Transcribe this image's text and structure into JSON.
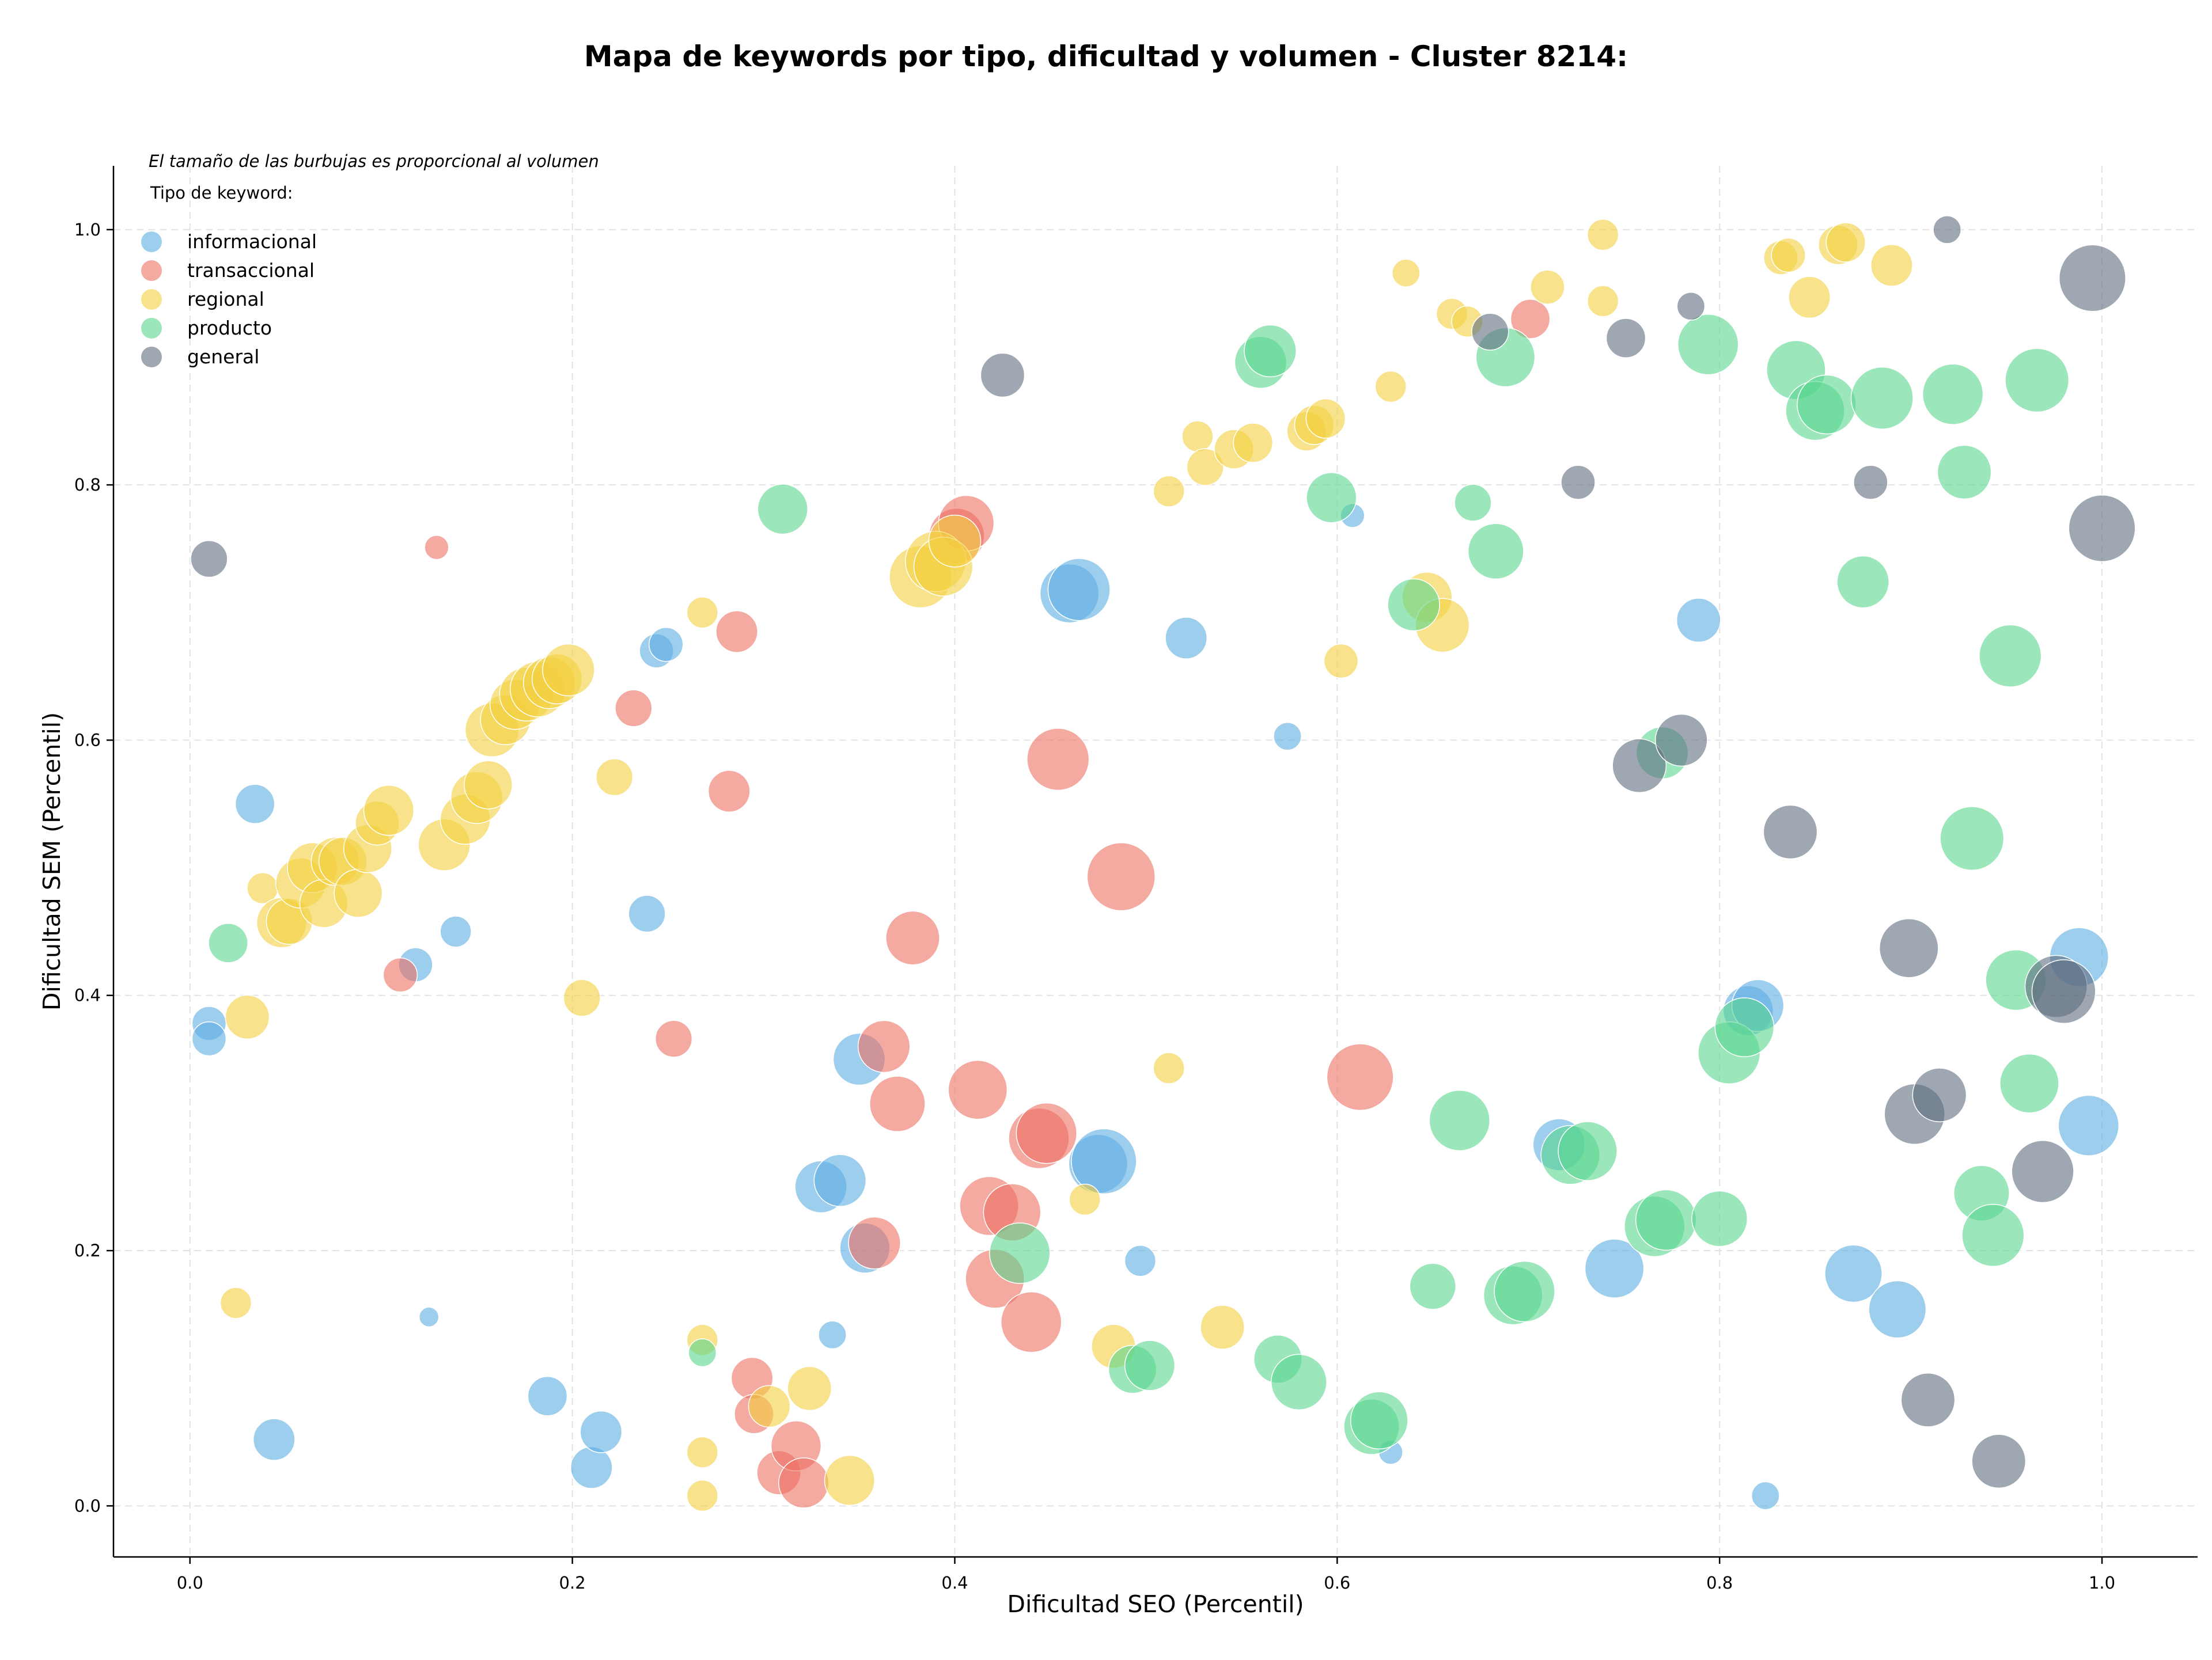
{
  "chart_data": {
    "type": "scatter",
    "title": "Mapa de keywords por tipo, dificultad y volumen - Cluster 8214:",
    "xlabel": "Dificultad SEO (Percentil)",
    "ylabel": "Dificultad SEM (Percentil)",
    "xlim": [
      -0.04,
      1.05
    ],
    "ylim": [
      -0.04,
      1.05
    ],
    "xticks": [
      "0.0",
      "0.2",
      "0.4",
      "0.6",
      "0.8",
      "1.0"
    ],
    "yticks": [
      "0.0",
      "0.2",
      "0.4",
      "0.6",
      "0.8",
      "1.0"
    ],
    "grid": true,
    "legend_position": "top-left",
    "legend_note": "El tamaño de las burbujas es proporcional al volumen",
    "legend_title": "Tipo de keyword:",
    "size_encoding": "volume",
    "series": [
      {
        "name": "informacional",
        "color": "#5dade2",
        "points": [
          [
            0.01,
            0.378,
            0.6
          ],
          [
            0.01,
            0.366,
            0.6
          ],
          [
            0.034,
            0.55,
            0.8
          ],
          [
            0.044,
            0.052,
            0.9
          ],
          [
            0.118,
            0.424,
            0.6
          ],
          [
            0.125,
            0.148,
            0.2
          ],
          [
            0.139,
            0.45,
            0.5
          ],
          [
            0.187,
            0.086,
            0.8
          ],
          [
            0.21,
            0.03,
            0.9
          ],
          [
            0.215,
            0.058,
            0.9
          ],
          [
            0.239,
            0.464,
            0.7
          ],
          [
            0.244,
            0.67,
            0.6
          ],
          [
            0.249,
            0.675,
            0.6
          ],
          [
            0.33,
            0.25,
            1.4
          ],
          [
            0.34,
            0.255,
            1.4
          ],
          [
            0.336,
            0.134,
            0.4
          ],
          [
            0.35,
            0.35,
            1.4
          ],
          [
            0.353,
            0.202,
            1.3
          ],
          [
            0.46,
            0.715,
            1.8
          ],
          [
            0.465,
            0.718,
            2.0
          ],
          [
            0.475,
            0.268,
            1.8
          ],
          [
            0.478,
            0.27,
            2.2
          ],
          [
            0.497,
            0.192,
            0.5
          ],
          [
            0.521,
            0.68,
            0.9
          ],
          [
            0.574,
            0.603,
            0.4
          ],
          [
            0.608,
            0.776,
            0.3
          ],
          [
            0.628,
            0.042,
            0.3
          ],
          [
            0.716,
            0.283,
            1.4
          ],
          [
            0.745,
            0.186,
            1.8
          ],
          [
            0.789,
            0.694,
            1.0
          ],
          [
            0.815,
            0.388,
            1.3
          ],
          [
            0.82,
            0.392,
            1.4
          ],
          [
            0.824,
            0.008,
            0.4
          ],
          [
            0.87,
            0.182,
            1.7
          ],
          [
            0.893,
            0.154,
            1.7
          ],
          [
            0.988,
            0.43,
            1.8
          ],
          [
            0.993,
            0.298,
            1.9
          ]
        ]
      },
      {
        "name": "transaccional",
        "color": "#ec7063",
        "points": [
          [
            0.11,
            0.416,
            0.6
          ],
          [
            0.129,
            0.751,
            0.3
          ],
          [
            0.232,
            0.625,
            0.7
          ],
          [
            0.253,
            0.366,
            0.7
          ],
          [
            0.282,
            0.56,
            0.9
          ],
          [
            0.286,
            0.685,
            0.9
          ],
          [
            0.294,
            0.1,
            0.9
          ],
          [
            0.295,
            0.072,
            0.8
          ],
          [
            0.308,
            0.026,
            1.0
          ],
          [
            0.317,
            0.047,
            1.3
          ],
          [
            0.321,
            0.018,
            1.3
          ],
          [
            0.358,
            0.206,
            1.4
          ],
          [
            0.363,
            0.36,
            1.4
          ],
          [
            0.37,
            0.315,
            1.6
          ],
          [
            0.378,
            0.445,
            1.5
          ],
          [
            0.401,
            0.76,
            1.6
          ],
          [
            0.406,
            0.77,
            1.6
          ],
          [
            0.412,
            0.326,
            1.8
          ],
          [
            0.418,
            0.235,
            1.8
          ],
          [
            0.421,
            0.178,
            1.8
          ],
          [
            0.43,
            0.23,
            1.7
          ],
          [
            0.44,
            0.144,
            1.9
          ],
          [
            0.444,
            0.288,
            1.9
          ],
          [
            0.448,
            0.292,
            1.9
          ],
          [
            0.454,
            0.585,
            2.0
          ],
          [
            0.487,
            0.493,
            2.4
          ],
          [
            0.612,
            0.336,
            2.3
          ],
          [
            0.701,
            0.93,
            0.8
          ]
        ]
      },
      {
        "name": "regional",
        "color": "#f4d03f",
        "points": [
          [
            0.024,
            0.159,
            0.5
          ],
          [
            0.03,
            0.383,
            1.0
          ],
          [
            0.038,
            0.484,
            0.5
          ],
          [
            0.048,
            0.457,
            1.3
          ],
          [
            0.052,
            0.458,
            1.1
          ],
          [
            0.058,
            0.488,
            1.3
          ],
          [
            0.064,
            0.5,
            1.3
          ],
          [
            0.07,
            0.472,
            1.2
          ],
          [
            0.076,
            0.505,
            1.2
          ],
          [
            0.08,
            0.505,
            1.2
          ],
          [
            0.088,
            0.48,
            1.2
          ],
          [
            0.093,
            0.515,
            1.2
          ],
          [
            0.098,
            0.535,
            1.0
          ],
          [
            0.104,
            0.545,
            1.3
          ],
          [
            0.133,
            0.518,
            1.4
          ],
          [
            0.144,
            0.538,
            1.3
          ],
          [
            0.15,
            0.555,
            1.4
          ],
          [
            0.156,
            0.565,
            1.2
          ],
          [
            0.158,
            0.608,
            1.5
          ],
          [
            0.165,
            0.616,
            1.3
          ],
          [
            0.17,
            0.628,
            1.3
          ],
          [
            0.176,
            0.636,
            1.5
          ],
          [
            0.182,
            0.64,
            1.6
          ],
          [
            0.188,
            0.645,
            1.4
          ],
          [
            0.192,
            0.648,
            1.3
          ],
          [
            0.198,
            0.655,
            1.4
          ],
          [
            0.205,
            0.398,
            0.7
          ],
          [
            0.222,
            0.571,
            0.7
          ],
          [
            0.268,
            0.7,
            0.5
          ],
          [
            0.268,
            0.13,
            0.5
          ],
          [
            0.268,
            0.042,
            0.5
          ],
          [
            0.268,
            0.008,
            0.5
          ],
          [
            0.303,
            0.078,
            0.9
          ],
          [
            0.324,
            0.092,
            1.0
          ],
          [
            0.345,
            0.02,
            1.3
          ],
          [
            0.382,
            0.728,
            2.0
          ],
          [
            0.39,
            0.74,
            1.9
          ],
          [
            0.394,
            0.736,
            1.8
          ],
          [
            0.4,
            0.756,
            1.4
          ],
          [
            0.468,
            0.24,
            0.5
          ],
          [
            0.483,
            0.125,
            1.0
          ],
          [
            0.512,
            0.343,
            0.5
          ],
          [
            0.512,
            0.795,
            0.5
          ],
          [
            0.527,
            0.838,
            0.5
          ],
          [
            0.531,
            0.814,
            0.7
          ],
          [
            0.546,
            0.828,
            0.8
          ],
          [
            0.556,
            0.833,
            0.8
          ],
          [
            0.54,
            0.14,
            1.0
          ],
          [
            0.584,
            0.842,
            0.8
          ],
          [
            0.588,
            0.847,
            0.8
          ],
          [
            0.594,
            0.852,
            0.8
          ],
          [
            0.602,
            0.662,
            0.6
          ],
          [
            0.628,
            0.877,
            0.5
          ],
          [
            0.636,
            0.966,
            0.4
          ],
          [
            0.647,
            0.712,
            1.3
          ],
          [
            0.655,
            0.69,
            1.5
          ],
          [
            0.66,
            0.934,
            0.5
          ],
          [
            0.668,
            0.928,
            0.5
          ],
          [
            0.71,
            0.955,
            0.6
          ],
          [
            0.739,
            0.996,
            0.5
          ],
          [
            0.739,
            0.944,
            0.5
          ],
          [
            0.832,
            0.978,
            0.6
          ],
          [
            0.836,
            0.98,
            0.6
          ],
          [
            0.847,
            0.947,
            0.9
          ],
          [
            0.862,
            0.988,
            0.8
          ],
          [
            0.866,
            0.99,
            0.8
          ],
          [
            0.89,
            0.972,
            0.9
          ]
        ]
      },
      {
        "name": "producto",
        "color": "#58d68d",
        "points": [
          [
            0.02,
            0.441,
            0.8
          ],
          [
            0.268,
            0.12,
            0.4
          ],
          [
            0.31,
            0.781,
            1.3
          ],
          [
            0.434,
            0.198,
            1.9
          ],
          [
            0.493,
            0.107,
            1.2
          ],
          [
            0.502,
            0.11,
            1.3
          ],
          [
            0.56,
            0.896,
            1.4
          ],
          [
            0.565,
            0.905,
            1.4
          ],
          [
            0.569,
            0.115,
            1.2
          ],
          [
            0.58,
            0.097,
            1.6
          ],
          [
            0.597,
            0.79,
            1.3
          ],
          [
            0.618,
            0.062,
            1.6
          ],
          [
            0.622,
            0.067,
            1.7
          ],
          [
            0.64,
            0.706,
            1.4
          ],
          [
            0.65,
            0.172,
            1.1
          ],
          [
            0.664,
            0.302,
            1.9
          ],
          [
            0.671,
            0.786,
            0.7
          ],
          [
            0.683,
            0.748,
            1.6
          ],
          [
            0.688,
            0.9,
            1.8
          ],
          [
            0.692,
            0.165,
            1.8
          ],
          [
            0.698,
            0.168,
            1.9
          ],
          [
            0.722,
            0.275,
            1.8
          ],
          [
            0.731,
            0.278,
            1.8
          ],
          [
            0.766,
            0.219,
            1.9
          ],
          [
            0.772,
            0.224,
            1.9
          ],
          [
            0.77,
            0.59,
            1.4
          ],
          [
            0.794,
            0.91,
            1.9
          ],
          [
            0.8,
            0.225,
            1.6
          ],
          [
            0.805,
            0.355,
            2.0
          ],
          [
            0.813,
            0.375,
            1.8
          ],
          [
            0.84,
            0.89,
            1.8
          ],
          [
            0.85,
            0.858,
            1.8
          ],
          [
            0.856,
            0.863,
            1.8
          ],
          [
            0.875,
            0.724,
            1.4
          ],
          [
            0.885,
            0.868,
            2.0
          ],
          [
            0.922,
            0.871,
            1.9
          ],
          [
            0.928,
            0.81,
            1.5
          ],
          [
            0.932,
            0.523,
            2.1
          ],
          [
            0.937,
            0.245,
            1.6
          ],
          [
            0.943,
            0.212,
            2.0
          ],
          [
            0.952,
            0.666,
            2.0
          ],
          [
            0.955,
            0.412,
            1.9
          ],
          [
            0.962,
            0.331,
            1.8
          ],
          [
            0.966,
            0.882,
            2.1
          ]
        ]
      },
      {
        "name": "general",
        "color": "#5d6d7e",
        "points": [
          [
            0.01,
            0.742,
            0.7
          ],
          [
            0.425,
            0.886,
            1.0
          ],
          [
            0.68,
            0.92,
            0.7
          ],
          [
            0.726,
            0.802,
            0.6
          ],
          [
            0.751,
            0.915,
            0.8
          ],
          [
            0.758,
            0.58,
            1.5
          ],
          [
            0.78,
            0.6,
            1.4
          ],
          [
            0.785,
            0.94,
            0.4
          ],
          [
            0.837,
            0.528,
            1.5
          ],
          [
            0.879,
            0.802,
            0.6
          ],
          [
            0.899,
            0.437,
            1.8
          ],
          [
            0.902,
            0.307,
            1.9
          ],
          [
            0.909,
            0.083,
            1.5
          ],
          [
            0.915,
            0.322,
            1.5
          ],
          [
            0.919,
            1.0,
            0.4
          ],
          [
            0.946,
            0.035,
            1.5
          ],
          [
            0.969,
            0.262,
            2.0
          ],
          [
            0.976,
            0.407,
            2.0
          ],
          [
            0.98,
            0.403,
            2.1
          ],
          [
            0.995,
            0.962,
            2.3
          ],
          [
            1.0,
            0.766,
            2.3
          ]
        ]
      }
    ]
  }
}
